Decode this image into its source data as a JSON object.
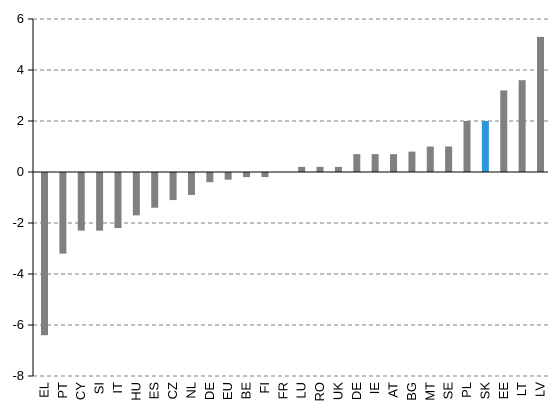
{
  "chart_data": {
    "type": "bar",
    "title": "",
    "xlabel": "",
    "ylabel": "",
    "ylim": [
      -8,
      6
    ],
    "yticks": [
      -8,
      -6,
      -4,
      -2,
      0,
      2,
      4,
      6
    ],
    "grid": true,
    "categories": [
      "EL",
      "PT",
      "CY",
      "SI",
      "IT",
      "HU",
      "ES",
      "CZ",
      "NL",
      "DE",
      "EU",
      "BE",
      "FI",
      "FR",
      "LU",
      "RO",
      "UK",
      "DE",
      "IE",
      "AT",
      "BG",
      "MT",
      "SE",
      "PL",
      "SK",
      "EE",
      "LT",
      "LV"
    ],
    "values": [
      -6.4,
      -3.2,
      -2.3,
      -2.3,
      -2.2,
      -1.7,
      -1.4,
      -1.1,
      -0.9,
      -0.4,
      -0.3,
      -0.2,
      -0.2,
      0.0,
      0.2,
      0.2,
      0.2,
      0.7,
      0.7,
      0.7,
      0.8,
      1.0,
      1.0,
      2.0,
      2.0,
      3.2,
      3.6,
      5.3
    ],
    "highlight_index": 24,
    "colors": {
      "bar": "#808080",
      "highlight": "#2e97d8",
      "grid": "#808080",
      "axis": "#000000"
    }
  }
}
